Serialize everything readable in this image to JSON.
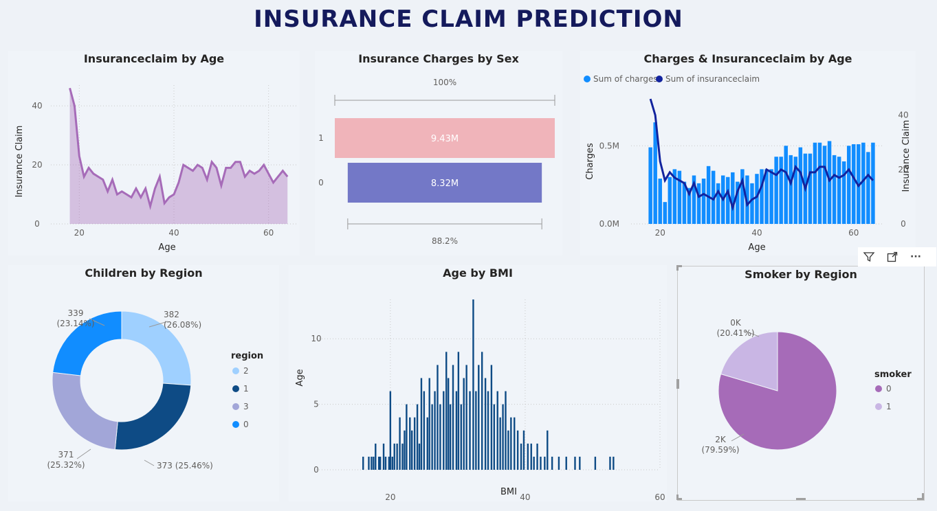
{
  "page": {
    "title": "INSURANCE CLAIM PREDICTION"
  },
  "toolbar": {
    "filter_icon": "filter-icon",
    "focus_icon": "focus-mode-icon",
    "more_icon": "more-options-icon",
    "more_glyph": "···"
  },
  "chart_data": [
    {
      "id": "claim_by_age",
      "type": "area",
      "title": "Insuranceclaim by Age",
      "xlabel": "Age",
      "ylabel": "Insurance Claim",
      "xlim": [
        14,
        66
      ],
      "ylim": [
        0,
        47
      ],
      "xticks": [
        20,
        40,
        60
      ],
      "yticks": [
        0,
        20,
        40
      ],
      "color": "#a66bb8",
      "x": [
        18,
        19,
        20,
        21,
        22,
        23,
        24,
        25,
        26,
        27,
        28,
        29,
        30,
        31,
        32,
        33,
        34,
        35,
        36,
        37,
        38,
        39,
        40,
        41,
        42,
        43,
        44,
        45,
        46,
        47,
        48,
        49,
        50,
        51,
        52,
        53,
        54,
        55,
        56,
        57,
        58,
        59,
        60,
        61,
        62,
        63,
        64
      ],
      "values": [
        46,
        40,
        23,
        16,
        19,
        17,
        16,
        15,
        11,
        15,
        10,
        11,
        10,
        9,
        12,
        9,
        12,
        6,
        12,
        16,
        7,
        9,
        10,
        14,
        20,
        19,
        18,
        20,
        19,
        15,
        21,
        19,
        13,
        19,
        19,
        21,
        21,
        16,
        18,
        17,
        18,
        20,
        17,
        14,
        16,
        18,
        16
      ]
    },
    {
      "id": "charges_by_sex",
      "type": "funnel",
      "title": "Insurance Charges by Sex",
      "categories": [
        "1",
        "0"
      ],
      "values": [
        9.43,
        8.32
      ],
      "value_labels": [
        "9.43M",
        "8.32M"
      ],
      "top_label": "100%",
      "bottom_label": "88.2%",
      "colors": [
        "#f0b4ba",
        "#7378c7"
      ]
    },
    {
      "id": "charges_claim_by_age",
      "type": "bar",
      "title": "Charges & Insuranceclaim by Age",
      "xlabel": "Age",
      "ylabel": "Charges",
      "y2label": "Insurance Claim",
      "xlim": [
        14,
        66
      ],
      "ylim": [
        0,
        0.8
      ],
      "y2lim": [
        0,
        46
      ],
      "xticks": [
        20,
        40,
        60
      ],
      "yticks": [
        0,
        0.5
      ],
      "ytick_labels": [
        "0.0M",
        "0.5M"
      ],
      "y2ticks": [
        0,
        20,
        40
      ],
      "legend": [
        "Sum of charges",
        "Sum of insuranceclaim"
      ],
      "legend_position": "top-left",
      "colors": [
        "#118dff",
        "#12239e"
      ],
      "x": [
        18,
        19,
        20,
        21,
        22,
        23,
        24,
        25,
        26,
        27,
        28,
        29,
        30,
        31,
        32,
        33,
        34,
        35,
        36,
        37,
        38,
        39,
        40,
        41,
        42,
        43,
        44,
        45,
        46,
        47,
        48,
        49,
        50,
        51,
        52,
        53,
        54,
        55,
        56,
        57,
        58,
        59,
        60,
        61,
        62,
        63,
        64
      ],
      "charges": [
        0.49,
        0.65,
        0.29,
        0.14,
        0.3,
        0.35,
        0.34,
        0.27,
        0.23,
        0.31,
        0.26,
        0.29,
        0.37,
        0.34,
        0.26,
        0.31,
        0.3,
        0.33,
        0.27,
        0.35,
        0.31,
        0.26,
        0.32,
        0.35,
        0.35,
        0.35,
        0.43,
        0.43,
        0.5,
        0.44,
        0.43,
        0.49,
        0.45,
        0.45,
        0.52,
        0.52,
        0.5,
        0.53,
        0.44,
        0.43,
        0.4,
        0.5,
        0.51,
        0.51,
        0.52,
        0.46,
        0.52
      ],
      "claims": [
        46,
        40,
        23,
        16,
        19,
        17,
        16,
        15,
        11,
        15,
        10,
        11,
        10,
        9,
        12,
        9,
        12,
        6,
        12,
        16,
        7,
        9,
        10,
        14,
        20,
        19,
        18,
        20,
        19,
        15,
        21,
        19,
        13,
        19,
        19,
        21,
        21,
        16,
        18,
        17,
        18,
        20,
        17,
        14,
        16,
        18,
        16
      ]
    },
    {
      "id": "children_by_region",
      "type": "pie",
      "donut": true,
      "title": "Children by Region",
      "legend_title": "region",
      "legend_position": "right",
      "categories": [
        "2",
        "1",
        "3",
        "0"
      ],
      "values": [
        382,
        373,
        371,
        339
      ],
      "percent_labels": [
        "382\n(26.08%)",
        "373 (25.46%)",
        "371\n(25.32%)",
        "339\n(23.14%)"
      ],
      "colors": [
        "#9fd0ff",
        "#0e4b85",
        "#a2a6d8",
        "#118dff"
      ]
    },
    {
      "id": "age_by_bmi",
      "type": "bar",
      "title": "Age by BMI",
      "xlabel": "BMI",
      "ylabel": "Age",
      "xlim": [
        9,
        60
      ],
      "ylim": [
        0,
        13
      ],
      "xticks": [
        20,
        40,
        60
      ],
      "yticks": [
        0,
        5,
        10
      ],
      "color": "#0e4b85",
      "points": [
        [
          15.96,
          1
        ],
        [
          16.8,
          1
        ],
        [
          17.2,
          1
        ],
        [
          17.5,
          1
        ],
        [
          17.8,
          2
        ],
        [
          18.3,
          1
        ],
        [
          18.5,
          1
        ],
        [
          19.0,
          2
        ],
        [
          19.3,
          1
        ],
        [
          19.8,
          1
        ],
        [
          20.0,
          6
        ],
        [
          20.3,
          1
        ],
        [
          20.6,
          2
        ],
        [
          21.0,
          2
        ],
        [
          21.4,
          4
        ],
        [
          21.8,
          2
        ],
        [
          22.1,
          3
        ],
        [
          22.4,
          5
        ],
        [
          22.9,
          4
        ],
        [
          23.2,
          3
        ],
        [
          23.6,
          4
        ],
        [
          24.0,
          5
        ],
        [
          24.3,
          2
        ],
        [
          24.6,
          7
        ],
        [
          25.0,
          6
        ],
        [
          25.5,
          4
        ],
        [
          25.8,
          7
        ],
        [
          26.2,
          5
        ],
        [
          26.6,
          6
        ],
        [
          27.0,
          8
        ],
        [
          27.4,
          5
        ],
        [
          27.9,
          6
        ],
        [
          28.3,
          9
        ],
        [
          28.6,
          7
        ],
        [
          28.9,
          5
        ],
        [
          29.3,
          8
        ],
        [
          29.8,
          6
        ],
        [
          30.1,
          9
        ],
        [
          30.5,
          5
        ],
        [
          30.9,
          7
        ],
        [
          31.3,
          8
        ],
        [
          31.8,
          6
        ],
        [
          32.3,
          13
        ],
        [
          32.7,
          6
        ],
        [
          33.1,
          8
        ],
        [
          33.6,
          9
        ],
        [
          34.1,
          7
        ],
        [
          34.5,
          6
        ],
        [
          35.0,
          8
        ],
        [
          35.4,
          5
        ],
        [
          35.9,
          6
        ],
        [
          36.3,
          4
        ],
        [
          36.7,
          5
        ],
        [
          37.1,
          6
        ],
        [
          37.5,
          3
        ],
        [
          37.9,
          4
        ],
        [
          38.4,
          4
        ],
        [
          38.9,
          3
        ],
        [
          39.4,
          2
        ],
        [
          39.8,
          3
        ],
        [
          40.4,
          2
        ],
        [
          40.9,
          2
        ],
        [
          41.3,
          1
        ],
        [
          41.8,
          2
        ],
        [
          42.3,
          1
        ],
        [
          42.9,
          1
        ],
        [
          43.3,
          3
        ],
        [
          44.0,
          1
        ],
        [
          45.0,
          1
        ],
        [
          46.1,
          1
        ],
        [
          47.4,
          1
        ],
        [
          48.1,
          1
        ],
        [
          50.4,
          1
        ],
        [
          52.6,
          1
        ],
        [
          53.1,
          1
        ]
      ]
    },
    {
      "id": "smoker_by_region",
      "type": "pie",
      "title": "Smoker by Region",
      "legend_title": "smoker",
      "legend_position": "right",
      "categories": [
        "0",
        "1"
      ],
      "values": [
        79.59,
        20.41
      ],
      "value_labels": [
        "2K\n(79.59%)",
        "0K\n(20.41%)"
      ],
      "colors": [
        "#a66bb8",
        "#c9b6e4"
      ]
    }
  ]
}
